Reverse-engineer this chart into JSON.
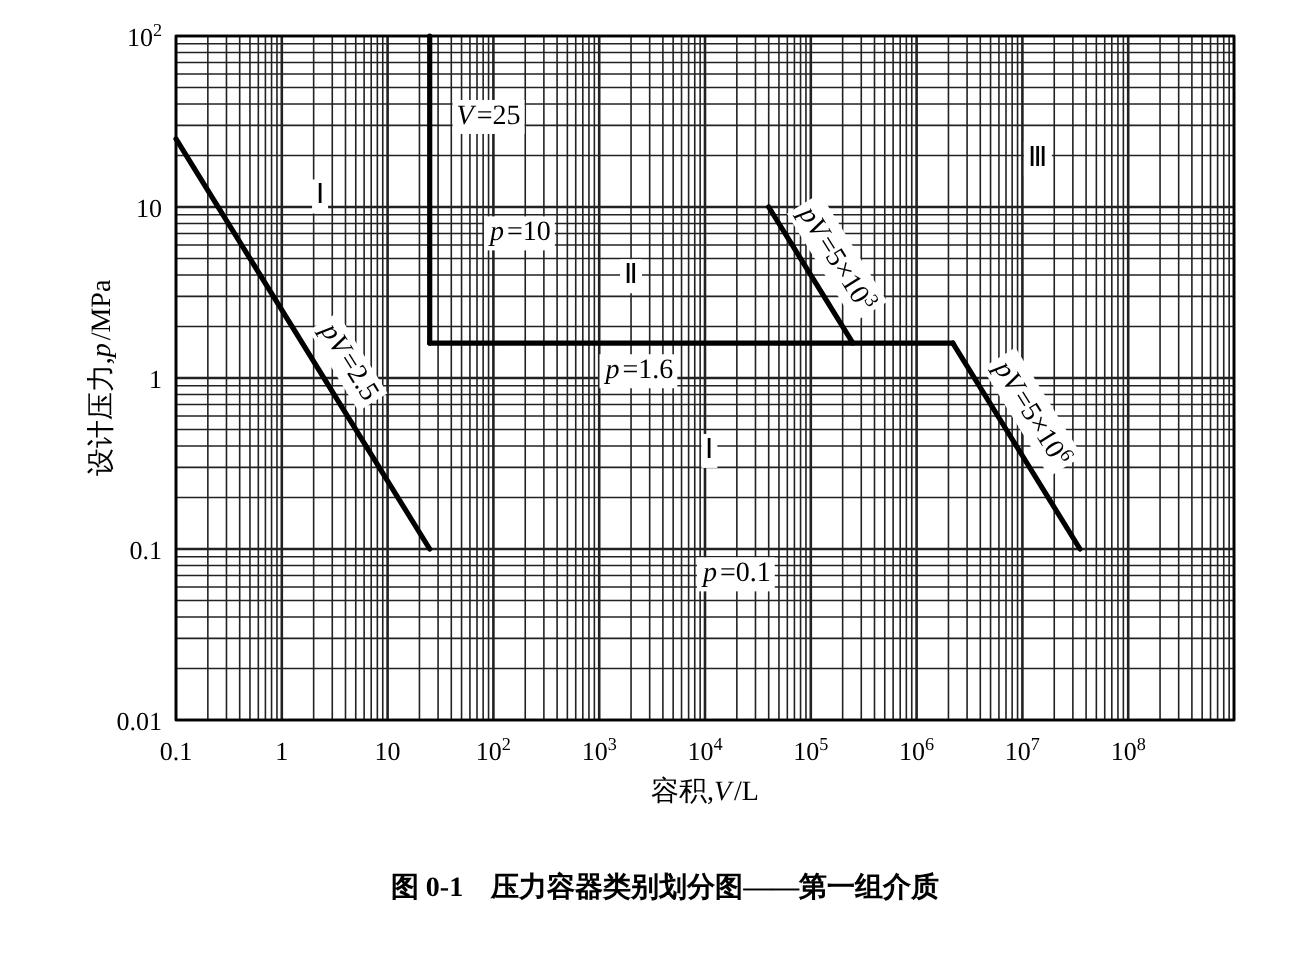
{
  "chart_data": {
    "type": "line",
    "title": "图 0-1　压力容器类别划分图——第一组介质",
    "xlabel": "容积,*V*/L",
    "ylabel": "设计压力,*p*/MPa",
    "log": "xy",
    "grid": true,
    "line_style": "solid",
    "xlim": [
      0.1,
      1000000000
    ],
    "ylim": [
      0.01,
      100
    ],
    "xticks": [
      0.1,
      1,
      10,
      {
        "value": 100,
        "label": "10$^{2}$"
      },
      {
        "value": 1000,
        "label": "10$^{3}$"
      },
      {
        "value": 10000,
        "label": "10$^{4}$"
      },
      {
        "value": 100000,
        "label": "10$^{5}$"
      },
      {
        "value": 1000000,
        "label": "10$^{6}$"
      },
      {
        "value": 10000000,
        "label": "10$^{7}$"
      },
      {
        "value": 100000000,
        "label": "10$^{8}$"
      }
    ],
    "yticks": [
      0.01,
      0.1,
      1,
      10,
      {
        "value": 100,
        "label": "10$^{2}$"
      }
    ],
    "series": [
      {
        "color": "#000000",
        "x": [
          0.1,
          25
        ],
        "values": [
          25,
          0.1
        ]
      },
      {
        "color": "#000000",
        "x": [
          25,
          25
        ],
        "values": [
          100,
          1.6
        ]
      },
      {
        "color": "#000000",
        "x": [
          25,
          2200000
        ],
        "values": [
          1.6,
          1.6
        ]
      },
      {
        "color": "#000000",
        "x": [
          40000,
          250000
        ],
        "values": [
          10,
          1.6
        ]
      },
      {
        "color": "#000000",
        "x": [
          2200000,
          35000000
        ],
        "values": [
          1.6,
          0.1
        ]
      }
    ],
    "annotations": [
      {
        "text": "Ⅰ",
        "x": 2.3,
        "y": 12
      },
      {
        "text": "*V*=25",
        "x": 90,
        "y": 35
      },
      {
        "text": "*p*=10",
        "x": 180,
        "y": 7.3
      },
      {
        "text": "Ⅱ",
        "x": 2000,
        "y": 4.1
      },
      {
        "text": "*p*=1.6",
        "x": 2400,
        "y": 1.14
      },
      {
        "text": "Ⅰ",
        "x": 11000,
        "y": 0.39
      },
      {
        "text": "*p*=0.1",
        "x": 20000,
        "y": 0.074
      },
      {
        "text": "*pV*=2.5",
        "x": 2.5,
        "y": 1
      },
      {
        "text": "*pV*=5×10$^{3}$",
        "x": 100000,
        "y": 4
      },
      {
        "text": "*pV*=5×10$^{6}$",
        "x": 7000000,
        "y": 0.5
      },
      {
        "text": "Ⅲ",
        "x": 14000000,
        "y": 20
      }
    ]
  }
}
